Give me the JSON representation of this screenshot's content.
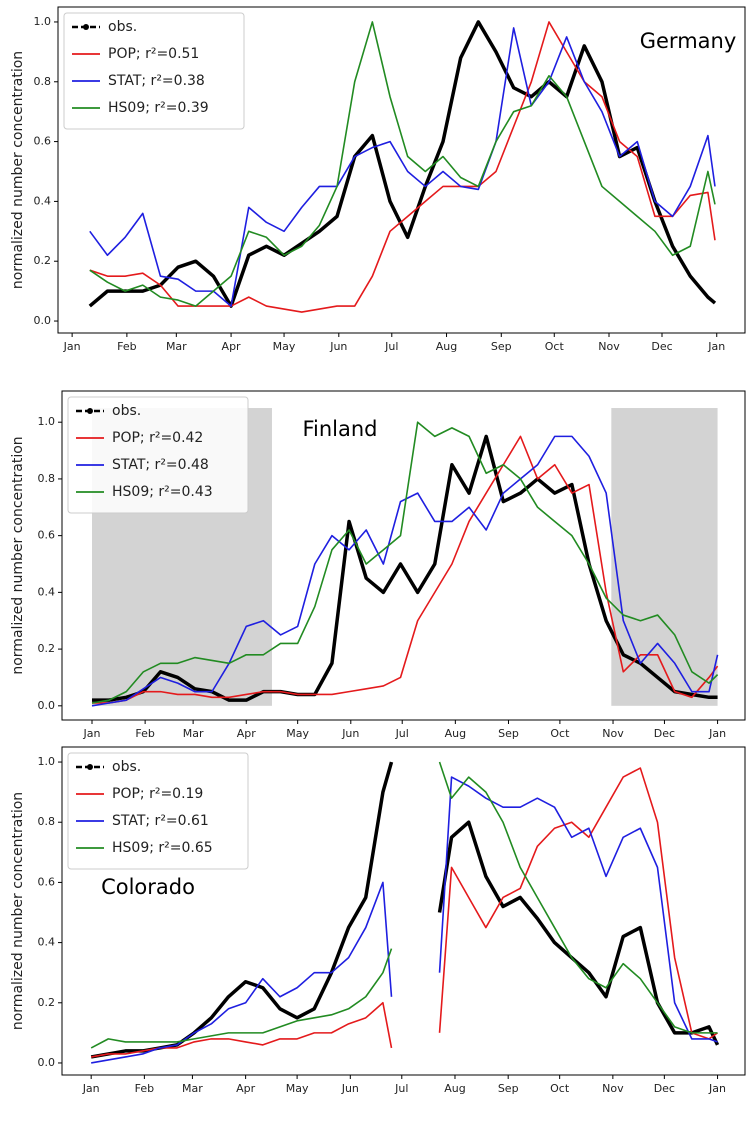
{
  "chart_data": [
    {
      "type": "line",
      "annotation": "Germany",
      "ylabel": "normalized number concentration",
      "legend": "upper left",
      "grid": false,
      "x": [
        10,
        20,
        30,
        40,
        50,
        60,
        70,
        80,
        90,
        100,
        110,
        120,
        130,
        140,
        150,
        160,
        170,
        180,
        190,
        200,
        210,
        220,
        230,
        240,
        250,
        260,
        270,
        280,
        290,
        300,
        310,
        320,
        330,
        340,
        350,
        360,
        364
      ],
      "xlim": [
        -8,
        381
      ],
      "ylim": [
        -0.04,
        1.05
      ],
      "xticks": [
        {
          "value": 0,
          "label": "Jan"
        },
        {
          "value": 31,
          "label": "Feb"
        },
        {
          "value": 59,
          "label": "Mar"
        },
        {
          "value": 90,
          "label": "Apr"
        },
        {
          "value": 120,
          "label": "May"
        },
        {
          "value": 151,
          "label": "Jun"
        },
        {
          "value": 181,
          "label": "Jul"
        },
        {
          "value": 212,
          "label": "Aug"
        },
        {
          "value": 243,
          "label": "Sep"
        },
        {
          "value": 273,
          "label": "Oct"
        },
        {
          "value": 304,
          "label": "Nov"
        },
        {
          "value": 334,
          "label": "Dec"
        },
        {
          "value": 365,
          "label": "Jan"
        }
      ],
      "yticks": [
        {
          "value": 0,
          "label": "0.0"
        },
        0.2,
        0.4,
        0.6,
        0.8,
        {
          "value": 1,
          "label": "1.0"
        }
      ],
      "series": [
        {
          "name": "obs.",
          "color": "#000000",
          "values": [
            0.05,
            0.1,
            0.1,
            0.1,
            0.12,
            0.18,
            0.2,
            0.15,
            0.05,
            0.22,
            0.25,
            0.22,
            0.26,
            0.3,
            0.35,
            0.55,
            0.62,
            0.4,
            0.28,
            0.45,
            0.6,
            0.88,
            1.0,
            0.9,
            0.78,
            0.75,
            0.8,
            0.75,
            0.92,
            0.8,
            0.55,
            0.58,
            0.4,
            0.25,
            0.15,
            0.08,
            0.06
          ]
        },
        {
          "name": "POP; r²=0.51",
          "color": "#e41a1c",
          "values": [
            0.17,
            0.15,
            0.15,
            0.16,
            0.12,
            0.05,
            0.05,
            0.05,
            0.05,
            0.08,
            0.05,
            0.04,
            0.03,
            0.04,
            0.05,
            0.05,
            0.15,
            0.3,
            0.35,
            0.4,
            0.45,
            0.45,
            0.45,
            0.5,
            0.65,
            0.8,
            1.0,
            0.9,
            0.8,
            0.75,
            0.6,
            0.55,
            0.35,
            0.35,
            0.42,
            0.43,
            0.27
          ]
        },
        {
          "name": "STAT; r²=0.38",
          "color": "#1f1fe0",
          "values": [
            0.3,
            0.22,
            0.28,
            0.36,
            0.15,
            0.14,
            0.1,
            0.1,
            0.05,
            0.38,
            0.33,
            0.3,
            0.38,
            0.45,
            0.45,
            0.55,
            0.58,
            0.6,
            0.5,
            0.45,
            0.5,
            0.45,
            0.44,
            0.6,
            0.98,
            0.72,
            0.8,
            0.95,
            0.8,
            0.7,
            0.55,
            0.6,
            0.4,
            0.35,
            0.45,
            0.62,
            0.45
          ]
        },
        {
          "name": "HS09; r²=0.39",
          "color": "#228b22",
          "values": [
            0.17,
            0.13,
            0.1,
            0.12,
            0.08,
            0.07,
            0.05,
            0.1,
            0.15,
            0.3,
            0.28,
            0.22,
            0.25,
            0.32,
            0.45,
            0.8,
            1.0,
            0.75,
            0.55,
            0.5,
            0.55,
            0.48,
            0.45,
            0.6,
            0.7,
            0.72,
            0.82,
            0.75,
            0.6,
            0.45,
            0.4,
            0.35,
            0.3,
            0.22,
            0.25,
            0.5,
            0.39
          ]
        }
      ]
    },
    {
      "type": "line",
      "annotation": "Finland",
      "ylabel": "normalized number concentration",
      "legend": "upper left",
      "grid": false,
      "shaded_regions": [
        [
          0,
          105
        ],
        [
          303,
          365
        ]
      ],
      "shade_ylim": [
        0,
        1.05
      ],
      "x": [
        0,
        10,
        20,
        30,
        40,
        50,
        60,
        70,
        80,
        90,
        100,
        110,
        120,
        130,
        140,
        150,
        160,
        170,
        180,
        190,
        200,
        210,
        220,
        230,
        240,
        250,
        260,
        270,
        280,
        290,
        300,
        310,
        320,
        330,
        340,
        350,
        360,
        365
      ],
      "xlim": [
        -17.5,
        381
      ],
      "ylim": [
        -0.05,
        1.11
      ],
      "xticks": [
        {
          "value": 0,
          "label": "Jan"
        },
        {
          "value": 31,
          "label": "Feb"
        },
        {
          "value": 59,
          "label": "Mar"
        },
        {
          "value": 90,
          "label": "Apr"
        },
        {
          "value": 120,
          "label": "May"
        },
        {
          "value": 151,
          "label": "Jun"
        },
        {
          "value": 181,
          "label": "Jul"
        },
        {
          "value": 212,
          "label": "Aug"
        },
        {
          "value": 243,
          "label": "Sep"
        },
        {
          "value": 273,
          "label": "Oct"
        },
        {
          "value": 304,
          "label": "Nov"
        },
        {
          "value": 334,
          "label": "Dec"
        },
        {
          "value": 365,
          "label": "Jan"
        }
      ],
      "yticks": [
        {
          "value": 0,
          "label": "0.0"
        },
        0.2,
        0.4,
        0.6,
        0.8,
        {
          "value": 1,
          "label": "1.0"
        }
      ],
      "series": [
        {
          "name": "obs.",
          "color": "#000000",
          "values": [
            0.02,
            0.02,
            0.03,
            0.05,
            0.12,
            0.1,
            0.06,
            0.05,
            0.02,
            0.02,
            0.05,
            0.05,
            0.04,
            0.04,
            0.15,
            0.65,
            0.45,
            0.4,
            0.5,
            0.4,
            0.5,
            0.85,
            0.75,
            0.95,
            0.72,
            0.75,
            0.8,
            0.75,
            0.78,
            0.5,
            0.3,
            0.18,
            0.15,
            0.1,
            0.05,
            0.04,
            0.03,
            0.03
          ]
        },
        {
          "name": "POP; r²=0.42",
          "color": "#e41a1c",
          "values": [
            0.01,
            0.01,
            0.02,
            0.05,
            0.05,
            0.04,
            0.04,
            0.03,
            0.03,
            0.04,
            0.05,
            0.05,
            0.04,
            0.04,
            0.04,
            0.05,
            0.06,
            0.07,
            0.1,
            0.3,
            0.4,
            0.5,
            0.65,
            0.75,
            0.85,
            0.95,
            0.8,
            0.85,
            0.75,
            0.78,
            0.4,
            0.12,
            0.18,
            0.18,
            0.05,
            0.03,
            0.1,
            0.14
          ]
        },
        {
          "name": "STAT; r²=0.48",
          "color": "#1f1fe0",
          "values": [
            0.0,
            0.01,
            0.02,
            0.06,
            0.1,
            0.08,
            0.05,
            0.05,
            0.15,
            0.28,
            0.3,
            0.25,
            0.28,
            0.5,
            0.6,
            0.55,
            0.62,
            0.5,
            0.72,
            0.75,
            0.65,
            0.65,
            0.7,
            0.62,
            0.75,
            0.8,
            0.85,
            0.95,
            0.95,
            0.88,
            0.75,
            0.3,
            0.15,
            0.22,
            0.15,
            0.05,
            0.05,
            0.18
          ]
        },
        {
          "name": "HS09; r²=0.43",
          "color": "#228b22",
          "values": [
            0.01,
            0.02,
            0.05,
            0.12,
            0.15,
            0.15,
            0.17,
            0.16,
            0.15,
            0.18,
            0.18,
            0.22,
            0.22,
            0.35,
            0.55,
            0.62,
            0.5,
            0.55,
            0.6,
            1.0,
            0.95,
            0.98,
            0.95,
            0.82,
            0.85,
            0.8,
            0.7,
            0.65,
            0.6,
            0.5,
            0.38,
            0.32,
            0.3,
            0.32,
            0.25,
            0.12,
            0.08,
            0.11
          ]
        }
      ]
    },
    {
      "type": "line",
      "annotation": "Colorado",
      "ylabel": "normalized number concentration",
      "legend": "upper left",
      "grid": false,
      "x": [
        0,
        10,
        20,
        30,
        40,
        50,
        60,
        70,
        80,
        90,
        100,
        110,
        120,
        130,
        140,
        150,
        160,
        170,
        175,
        190,
        203,
        210,
        220,
        230,
        240,
        250,
        260,
        270,
        280,
        290,
        300,
        310,
        320,
        330,
        340,
        350,
        360,
        365
      ],
      "xlim": [
        -17,
        381
      ],
      "ylim": [
        -0.04,
        1.05
      ],
      "xticks": [
        {
          "value": 0,
          "label": "Jan"
        },
        {
          "value": 31,
          "label": "Feb"
        },
        {
          "value": 59,
          "label": "Mar"
        },
        {
          "value": 90,
          "label": "Apr"
        },
        {
          "value": 120,
          "label": "May"
        },
        {
          "value": 151,
          "label": "Jun"
        },
        {
          "value": 181,
          "label": "Jul"
        },
        {
          "value": 212,
          "label": "Aug"
        },
        {
          "value": 243,
          "label": "Sep"
        },
        {
          "value": 273,
          "label": "Oct"
        },
        {
          "value": 304,
          "label": "Nov"
        },
        {
          "value": 334,
          "label": "Dec"
        },
        {
          "value": 365,
          "label": "Jan"
        }
      ],
      "yticks": [
        {
          "value": 0,
          "label": "0.0"
        },
        0.2,
        0.4,
        0.6,
        0.8,
        {
          "value": 1,
          "label": "1.0"
        }
      ],
      "series": [
        {
          "name": "obs.",
          "color": "#000000",
          "values": [
            0.02,
            0.03,
            0.04,
            0.04,
            0.05,
            0.06,
            0.1,
            0.15,
            0.22,
            0.27,
            0.25,
            0.18,
            0.15,
            0.18,
            0.3,
            0.45,
            0.55,
            0.9,
            1.0,
            null,
            0.5,
            0.75,
            0.8,
            0.62,
            0.52,
            0.55,
            0.48,
            0.4,
            0.35,
            0.3,
            0.22,
            0.42,
            0.45,
            0.2,
            0.1,
            0.1,
            0.12,
            0.06
          ]
        },
        {
          "name": "POP; r²=0.19",
          "color": "#e41a1c",
          "values": [
            0.02,
            0.03,
            0.03,
            0.04,
            0.05,
            0.05,
            0.07,
            0.08,
            0.08,
            0.07,
            0.06,
            0.08,
            0.08,
            0.1,
            0.1,
            0.13,
            0.15,
            0.2,
            0.05,
            null,
            0.1,
            0.65,
            0.55,
            0.45,
            0.55,
            0.58,
            0.72,
            0.78,
            0.8,
            0.75,
            0.85,
            0.95,
            0.98,
            0.8,
            0.35,
            0.1,
            0.08,
            0.1
          ]
        },
        {
          "name": "STAT; r²=0.61",
          "color": "#1f1fe0",
          "values": [
            0.0,
            0.01,
            0.02,
            0.03,
            0.05,
            0.06,
            0.1,
            0.13,
            0.18,
            0.2,
            0.28,
            0.22,
            0.25,
            0.3,
            0.3,
            0.35,
            0.45,
            0.6,
            0.22,
            null,
            0.3,
            0.95,
            0.92,
            0.88,
            0.85,
            0.85,
            0.88,
            0.85,
            0.75,
            0.78,
            0.62,
            0.75,
            0.78,
            0.65,
            0.2,
            0.08,
            0.08,
            0.07
          ]
        },
        {
          "name": "HS09; r²=0.65",
          "color": "#228b22",
          "values": [
            0.05,
            0.08,
            0.07,
            0.07,
            0.07,
            0.07,
            0.08,
            0.09,
            0.1,
            0.1,
            0.1,
            0.12,
            0.14,
            0.15,
            0.16,
            0.18,
            0.22,
            0.3,
            0.38,
            null,
            1.0,
            0.88,
            0.95,
            0.9,
            0.8,
            0.65,
            0.55,
            0.45,
            0.35,
            0.28,
            0.25,
            0.33,
            0.28,
            0.2,
            0.12,
            0.1,
            0.1,
            0.1
          ]
        }
      ]
    }
  ]
}
